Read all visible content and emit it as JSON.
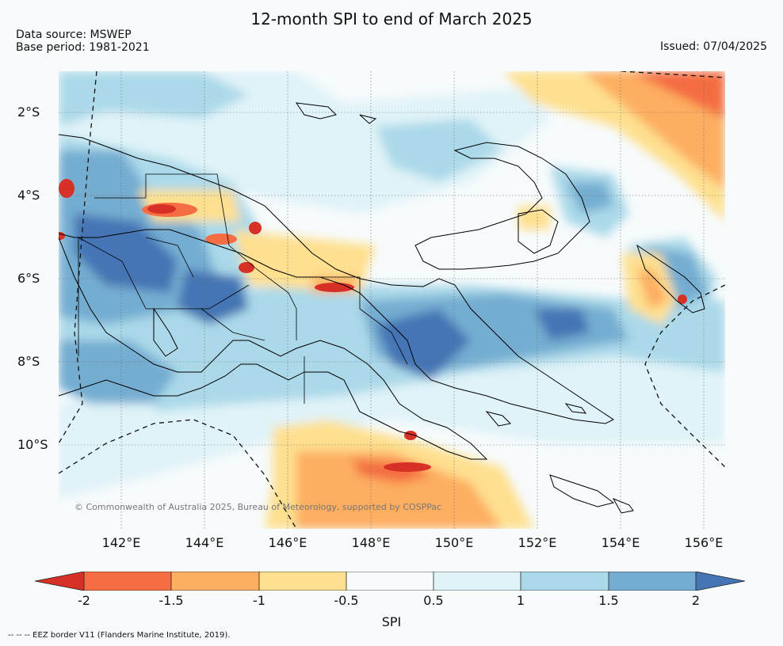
{
  "title": "12-month SPI to end of March 2025",
  "data_source": "Data source: MSWEP",
  "base_period": "Base period: 1981-2021",
  "issued": "Issued: 07/04/2025",
  "credit": "© Commonwealth of Australia 2025, Bureau of Meteorology, supported by COSPPac",
  "footnote": "-- -- -- EEZ border V11 (Flanders Marine Institute, 2019).",
  "lat_labels": [
    "2°S",
    "4°S",
    "6°S",
    "8°S",
    "10°S"
  ],
  "lon_labels": [
    "142°E",
    "144°E",
    "146°E",
    "148°E",
    "150°E",
    "152°E",
    "154°E",
    "156°E"
  ],
  "colorbar": {
    "label": "SPI",
    "ticks": [
      "-2",
      "-1.5",
      "-1",
      "-0.5",
      "0.5",
      "1",
      "1.5",
      "2"
    ],
    "colors": {
      "below_-2": "#d73027",
      "-2_to_-1.5": "#f46d43",
      "-1.5_to_-1": "#fdae61",
      "-1_to_-0.5": "#fee090",
      "-0.5_to_0.5": "#f7fbfc",
      "0.5_to_1": "#e0f3f8",
      "1_to_1.5": "#abd9e9",
      "1.5_to_2": "#74add1",
      "above_2": "#4575b4"
    }
  }
}
